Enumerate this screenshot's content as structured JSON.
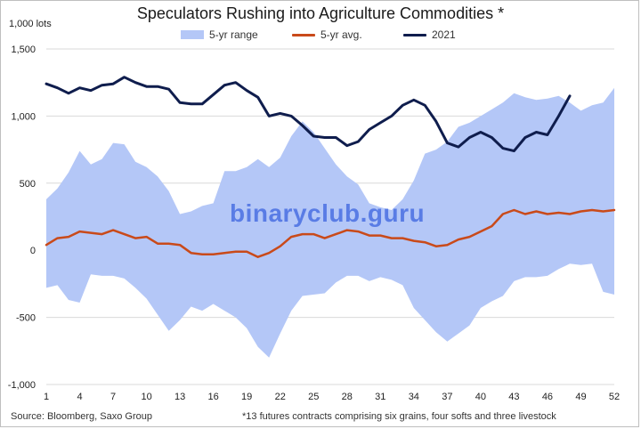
{
  "title": "Speculators Rushing into Agriculture Commodities *",
  "unit_label": "1,000 lots",
  "legend": {
    "range_label": "5-yr range",
    "avg_label": "5-yr avg.",
    "year_label": "2021"
  },
  "footer": {
    "source": "Source: Bloomberg, Saxo Group",
    "note": "*13 futures contracts comprising six grains, four softs and three livestock"
  },
  "watermark": "binaryclub.guru",
  "colors": {
    "range": "#b4c7f7",
    "avg": "#c94a1a",
    "year": "#0f1d4d"
  },
  "chart_data": {
    "type": "area",
    "x": [
      1,
      2,
      3,
      4,
      5,
      6,
      7,
      8,
      9,
      10,
      11,
      12,
      13,
      14,
      15,
      16,
      17,
      18,
      19,
      20,
      21,
      22,
      23,
      24,
      25,
      26,
      27,
      28,
      29,
      30,
      31,
      32,
      33,
      34,
      35,
      36,
      37,
      38,
      39,
      40,
      41,
      42,
      43,
      44,
      45,
      46,
      47,
      48,
      49,
      50,
      51,
      52
    ],
    "x_ticks": [
      1,
      4,
      7,
      10,
      13,
      16,
      19,
      22,
      25,
      28,
      31,
      34,
      37,
      40,
      43,
      46,
      49,
      52
    ],
    "y_ticks": [
      -1000,
      -500,
      0,
      500,
      1000,
      1500
    ],
    "y_tick_labels": [
      "-1,000",
      "-500",
      "0",
      "500",
      "1,000",
      "1,500"
    ],
    "xlim": [
      1,
      52
    ],
    "ylim": [
      -1000,
      1500
    ],
    "grid": true,
    "legend_position": "top",
    "series": [
      {
        "name": "5-yr range",
        "kind": "range",
        "upper": [
          380,
          460,
          580,
          740,
          640,
          680,
          800,
          790,
          660,
          620,
          550,
          440,
          270,
          290,
          330,
          350,
          590,
          590,
          620,
          680,
          620,
          690,
          850,
          960,
          880,
          760,
          640,
          550,
          490,
          350,
          320,
          300,
          380,
          520,
          720,
          750,
          810,
          920,
          950,
          1000,
          1050,
          1100,
          1170,
          1140,
          1120,
          1130,
          1150,
          1100,
          1040,
          1080,
          1100,
          1210
        ],
        "lower": [
          -280,
          -260,
          -370,
          -390,
          -180,
          -190,
          -190,
          -210,
          -280,
          -360,
          -480,
          -600,
          -520,
          -420,
          -450,
          -400,
          -450,
          -500,
          -580,
          -720,
          -800,
          -620,
          -450,
          -340,
          -330,
          -320,
          -240,
          -190,
          -190,
          -230,
          -200,
          -220,
          -260,
          -430,
          -520,
          -610,
          -680,
          -620,
          -560,
          -430,
          -380,
          -340,
          -230,
          -200,
          -200,
          -190,
          -140,
          -100,
          -110,
          -100,
          -310,
          -330
        ]
      },
      {
        "name": "5-yr avg.",
        "kind": "line",
        "values": [
          40,
          90,
          100,
          140,
          130,
          120,
          150,
          120,
          90,
          100,
          50,
          50,
          40,
          -20,
          -30,
          -30,
          -20,
          -10,
          -10,
          -50,
          -20,
          30,
          100,
          120,
          120,
          90,
          120,
          150,
          140,
          110,
          110,
          90,
          90,
          70,
          60,
          30,
          40,
          80,
          100,
          140,
          180,
          270,
          300,
          270,
          290,
          270,
          280,
          270,
          290,
          300,
          290,
          300
        ]
      },
      {
        "name": "2021",
        "kind": "line",
        "values": [
          1240,
          1210,
          1170,
          1210,
          1190,
          1230,
          1240,
          1290,
          1250,
          1220,
          1220,
          1200,
          1100,
          1090,
          1090,
          1160,
          1230,
          1250,
          1190,
          1140,
          1000,
          1020,
          1000,
          930,
          850,
          840,
          840,
          780,
          810,
          900,
          950,
          1000,
          1080,
          1120,
          1080,
          960,
          800,
          770,
          840,
          880,
          840,
          760,
          740,
          840,
          880,
          860,
          1000,
          1150,
          null,
          null,
          null,
          null
        ]
      }
    ]
  }
}
